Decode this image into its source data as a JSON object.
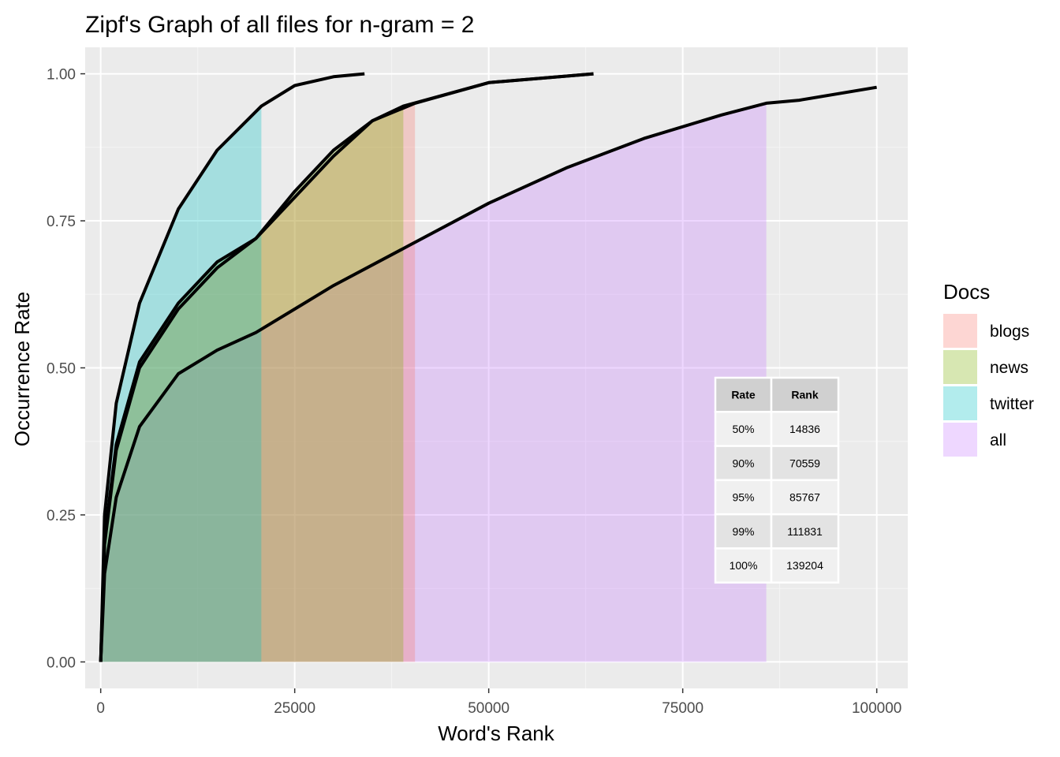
{
  "chart_data": {
    "type": "area",
    "title": "Zipf's Graph of all files for n-gram = 2",
    "xlabel": "Word's Rank",
    "ylabel": "Occurrence Rate",
    "xlim": [
      -2000,
      104000
    ],
    "ylim": [
      -0.045,
      1.045
    ],
    "x_ticks": [
      0,
      25000,
      50000,
      75000,
      100000
    ],
    "x_tick_labels": [
      "0",
      "25000",
      "50000",
      "75000",
      "100000"
    ],
    "y_ticks": [
      0.0,
      0.25,
      0.5,
      0.75,
      1.0
    ],
    "y_tick_labels": [
      "0.00",
      "0.25",
      "0.50",
      "0.75",
      "1.00"
    ],
    "grid": true,
    "legend": {
      "title": "Docs",
      "position": "right",
      "entries": [
        {
          "label": "blogs",
          "color": "#F8766D"
        },
        {
          "label": "news",
          "color": "#7CAE00"
        },
        {
          "label": "twitter",
          "color": "#00BFC4"
        },
        {
          "label": "all",
          "color": "#C77CFF"
        }
      ]
    },
    "series": [
      {
        "name": "all",
        "color": "#C77CFF",
        "x": [
          0,
          500,
          2000,
          5000,
          10000,
          15000,
          20000,
          30000,
          40000,
          50000,
          60000,
          70000,
          80000,
          85767,
          90000,
          100000
        ],
        "y": [
          0.0,
          0.15,
          0.28,
          0.4,
          0.49,
          0.53,
          0.56,
          0.64,
          0.71,
          0.78,
          0.84,
          0.89,
          0.93,
          0.95,
          0.955,
          0.977
        ],
        "fill_to_x": 85767
      },
      {
        "name": "blogs",
        "color": "#F8766D",
        "x": [
          0,
          500,
          2000,
          5000,
          10000,
          15000,
          20000,
          25000,
          30000,
          35000,
          40500,
          50000,
          63500
        ],
        "y": [
          0.0,
          0.2,
          0.36,
          0.5,
          0.6,
          0.67,
          0.72,
          0.79,
          0.86,
          0.92,
          0.95,
          0.985,
          1.0
        ],
        "fill_to_x": 40500
      },
      {
        "name": "news",
        "color": "#7CAE00",
        "x": [
          0,
          500,
          2000,
          5000,
          10000,
          15000,
          20000,
          25000,
          30000,
          35000,
          39000,
          50000,
          63500
        ],
        "y": [
          0.0,
          0.21,
          0.37,
          0.51,
          0.61,
          0.68,
          0.72,
          0.8,
          0.87,
          0.92,
          0.945,
          0.985,
          1.0
        ],
        "fill_to_x": 39000
      },
      {
        "name": "twitter",
        "color": "#00BFC4",
        "x": [
          0,
          500,
          2000,
          5000,
          10000,
          15000,
          20700,
          25000,
          30000,
          34000
        ],
        "y": [
          0.0,
          0.25,
          0.44,
          0.61,
          0.77,
          0.87,
          0.945,
          0.98,
          0.995,
          1.0
        ],
        "fill_to_x": 20700
      }
    ],
    "table": {
      "headers": [
        "Rate",
        "Rank"
      ],
      "rows": [
        [
          "50%",
          "14836"
        ],
        [
          "90%",
          "70559"
        ],
        [
          "95%",
          "85767"
        ],
        [
          "99%",
          "111831"
        ],
        [
          "100%",
          "139204"
        ]
      ]
    }
  }
}
